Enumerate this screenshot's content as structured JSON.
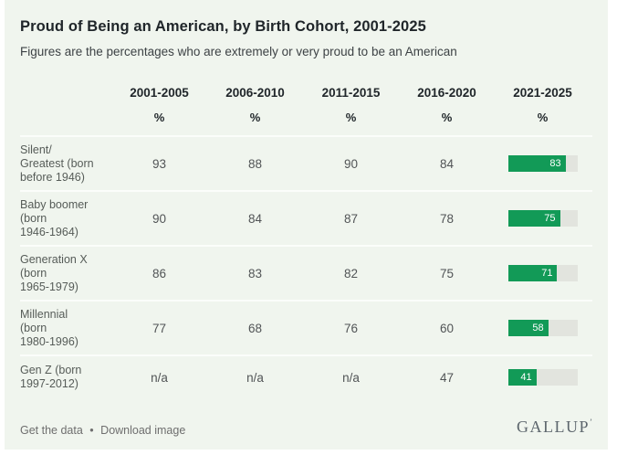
{
  "card": {
    "title": "Proud of Being an American, by Birth Cohort, 2001-2025",
    "subtitle": "Figures are the percentages who are extremely or very proud to be an American"
  },
  "table": {
    "columns": [
      "2001-2005",
      "2006-2010",
      "2011-2015",
      "2016-2020",
      "2021-2025"
    ],
    "unit": "%",
    "rows": [
      {
        "label": "Silent/\nGreatest (born\nbefore 1946)",
        "values": [
          "93",
          "88",
          "90",
          "84"
        ],
        "bar": 83,
        "bar_label": "83"
      },
      {
        "label": "Baby boomer\n(born\n1946-1964)",
        "values": [
          "90",
          "84",
          "87",
          "78"
        ],
        "bar": 75,
        "bar_label": "75"
      },
      {
        "label": "Generation X\n(born\n1965-1979)",
        "values": [
          "86",
          "83",
          "82",
          "75"
        ],
        "bar": 71,
        "bar_label": "71"
      },
      {
        "label": "Millennial\n(born\n1980-1996)",
        "values": [
          "77",
          "68",
          "76",
          "60"
        ],
        "bar": 58,
        "bar_label": "58"
      },
      {
        "label": "Gen Z (born\n1997-2012)",
        "values": [
          "n/a",
          "n/a",
          "n/a",
          "47"
        ],
        "bar": 41,
        "bar_label": "41"
      }
    ]
  },
  "footer": {
    "links": [
      "Get the data",
      "Download image"
    ],
    "separator": "•",
    "brand": "GALLUP",
    "brand_mark": "’"
  },
  "colors": {
    "background": "#f0f5ee",
    "bar_green": "#129a57",
    "bar_track": "#e2e4de"
  },
  "chart_data": {
    "type": "table",
    "title": "Proud of Being an American, by Birth Cohort, 2001-2025",
    "subtitle": "Figures are the percentages who are extremely or very proud to be an American",
    "columns": [
      "2001-2005",
      "2006-2010",
      "2011-2015",
      "2016-2020",
      "2021-2025"
    ],
    "unit": "%",
    "rows": [
      {
        "cohort": "Silent/Greatest (born before 1946)",
        "values": [
          93,
          88,
          90,
          84,
          83
        ]
      },
      {
        "cohort": "Baby boomer (born 1946-1964)",
        "values": [
          90,
          84,
          87,
          78,
          75
        ]
      },
      {
        "cohort": "Generation X (born 1965-1979)",
        "values": [
          86,
          83,
          82,
          75,
          71
        ]
      },
      {
        "cohort": "Millennial (born 1980-1996)",
        "values": [
          77,
          68,
          76,
          60,
          58
        ]
      },
      {
        "cohort": "Gen Z (born 1997-2012)",
        "values": [
          null,
          null,
          null,
          47,
          41
        ]
      }
    ],
    "last_column_rendered_as": "horizontal-bar",
    "bar_axis_range": [
      0,
      100
    ],
    "source_brand": "GALLUP"
  }
}
